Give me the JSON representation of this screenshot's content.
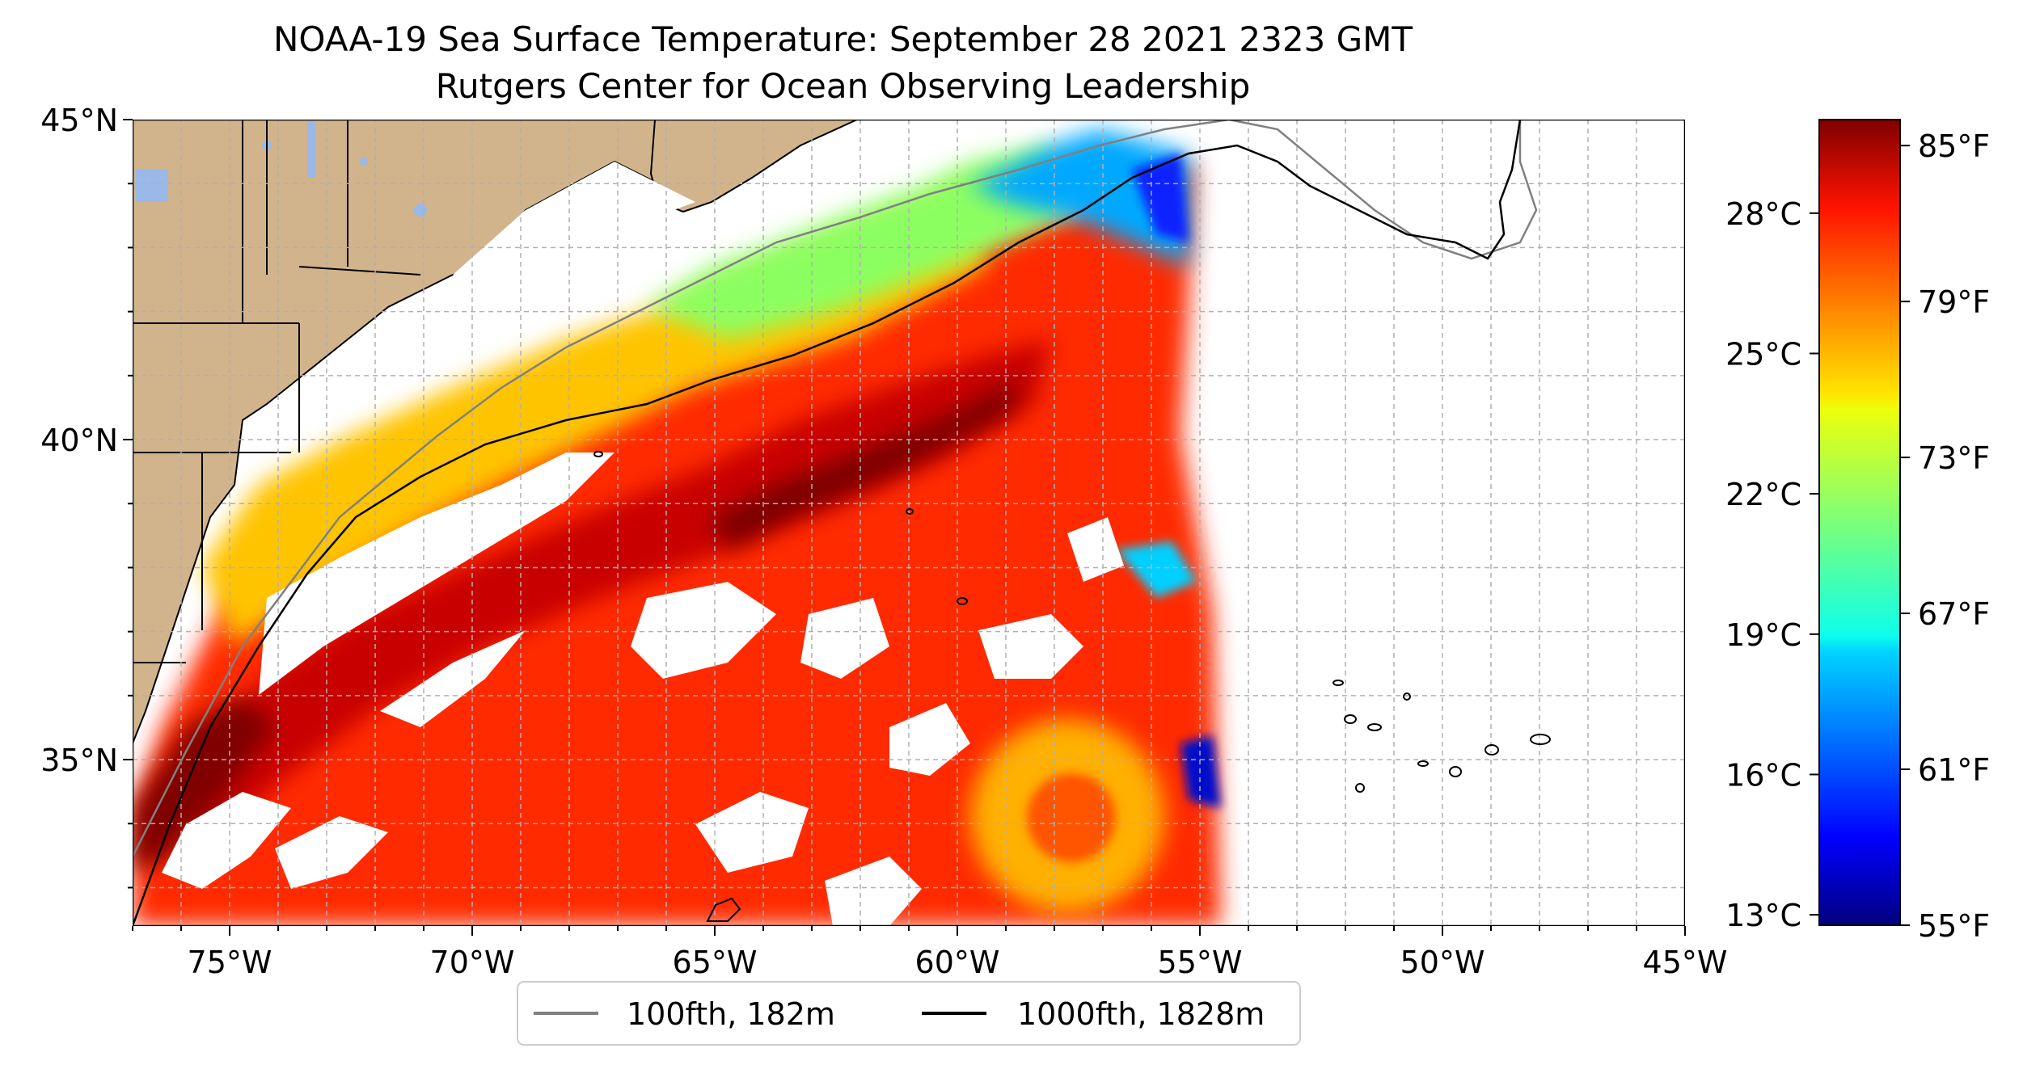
{
  "title": "NOAA-19 Sea Surface Temperature: September 28 2021 2323 GMT",
  "subtitle": "Rutgers Center for Ocean Observing Leadership",
  "map": {
    "lon_range": [
      -77,
      -45
    ],
    "lat_range": [
      32.4,
      45
    ],
    "lat_ticks": [
      {
        "value": 45,
        "label": "45°N"
      },
      {
        "value": 40,
        "label": "40°N"
      },
      {
        "value": 35,
        "label": "35°N"
      }
    ],
    "lon_ticks": [
      {
        "value": -75,
        "label": "75°W"
      },
      {
        "value": -70,
        "label": "70°W"
      },
      {
        "value": -65,
        "label": "65°W"
      },
      {
        "value": -60,
        "label": "60°W"
      },
      {
        "value": -55,
        "label": "55°W"
      },
      {
        "value": -50,
        "label": "50°W"
      },
      {
        "value": -45,
        "label": "45°W"
      }
    ],
    "gridlines": true,
    "land_color": "#d2b48c"
  },
  "colorbar": {
    "colormap": "jet",
    "range_f": [
      55,
      86
    ],
    "celsius_ticks": [
      {
        "value": 28,
        "label": "28°C"
      },
      {
        "value": 25,
        "label": "25°C"
      },
      {
        "value": 22,
        "label": "22°C"
      },
      {
        "value": 19,
        "label": "19°C"
      },
      {
        "value": 16,
        "label": "16°C"
      },
      {
        "value": 13,
        "label": "13°C"
      }
    ],
    "fahrenheit_ticks": [
      {
        "value": 85,
        "label": "85°F"
      },
      {
        "value": 79,
        "label": "79°F"
      },
      {
        "value": 73,
        "label": "73°F"
      },
      {
        "value": 67,
        "label": "67°F"
      },
      {
        "value": 61,
        "label": "61°F"
      },
      {
        "value": 55,
        "label": "55°F"
      }
    ]
  },
  "legend": {
    "placement": "bottom-center",
    "items": [
      {
        "label": "100fth, 182m",
        "color": "#808080"
      },
      {
        "label": "1000fth, 1828m",
        "color": "#000000"
      }
    ]
  }
}
